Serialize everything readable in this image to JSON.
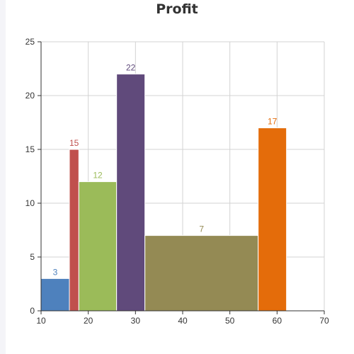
{
  "chart_data": {
    "type": "bar",
    "title": "Profit",
    "xlabel": "",
    "ylabel": "",
    "xlim": [
      10,
      70
    ],
    "ylim": [
      0,
      25
    ],
    "x_ticks": [
      "10",
      "20",
      "30",
      "40",
      "50",
      "60",
      "70"
    ],
    "y_ticks": [
      "0",
      "5",
      "10",
      "15",
      "20",
      "25"
    ],
    "grid": true,
    "bars": [
      {
        "x_start": 10,
        "x_end": 16,
        "value": 3,
        "label": "3",
        "color": "#4e81bd"
      },
      {
        "x_start": 16,
        "x_end": 18,
        "value": 15,
        "label": "15",
        "color": "#c0504d"
      },
      {
        "x_start": 18,
        "x_end": 26,
        "value": 12,
        "label": "12",
        "color": "#9bbb59"
      },
      {
        "x_start": 26,
        "x_end": 32,
        "value": 22,
        "label": "22",
        "color": "#604a7b"
      },
      {
        "x_start": 32,
        "x_end": 56,
        "value": 7,
        "label": "7",
        "color": "#948a54"
      },
      {
        "x_start": 56,
        "x_end": 62,
        "value": 17,
        "label": "17",
        "color": "#e46c0a"
      }
    ]
  }
}
